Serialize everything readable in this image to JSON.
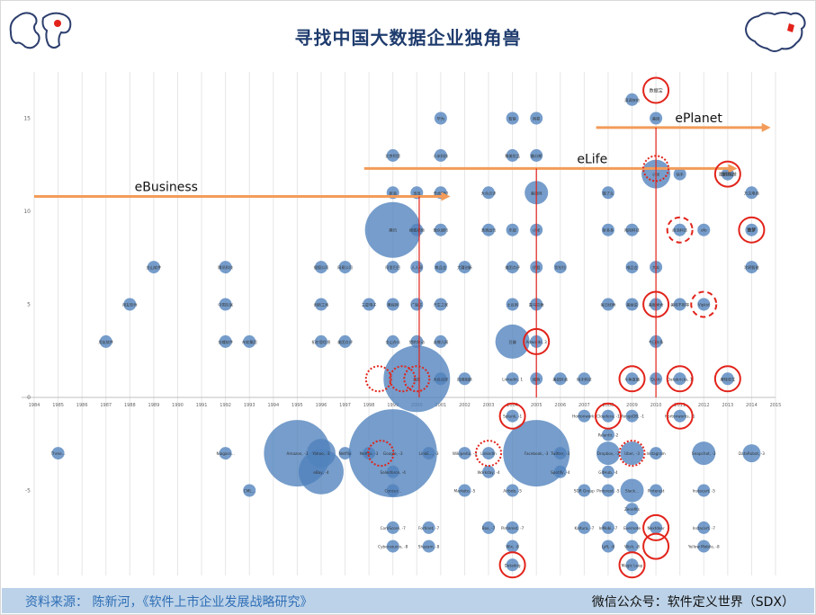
{
  "title": "寻找中国大数据企业独角兽",
  "footer": {
    "source": "资料来源： 陈新河，《软件上市企业发展战略研究》",
    "wechat": "微信公众号：软件定义世界（SDX）"
  },
  "icons": {
    "left_map": "world-map-icon",
    "right_map": "china-map-icon"
  },
  "colors": {
    "bubble": "#4f81bd",
    "arrow": "#f39c5a",
    "circle": "#e2231a",
    "vline": "#e2231a",
    "title": "#1f3c6e"
  },
  "chart_data": {
    "type": "scatter",
    "title": "",
    "xlabel": "",
    "ylabel": "",
    "xlim": [
      1984,
      2015
    ],
    "ylim": [
      -9,
      17
    ],
    "x_ticks": [
      "1984",
      "1985",
      "1986",
      "1987",
      "1988",
      "1989",
      "1990",
      "1991",
      "1992",
      "1993",
      "1994",
      "1995",
      "1996",
      "1997",
      "1998",
      "1999",
      "2000",
      "2001",
      "2002",
      "2003",
      "2004",
      "2005",
      "2006",
      "2007",
      "2008",
      "2009",
      "2010",
      "2011",
      "2012",
      "2013",
      "2014",
      "2015"
    ],
    "y_ticks": [
      -5,
      0,
      5,
      10,
      15
    ],
    "grid": "vertical",
    "eras": [
      {
        "label": "eBusiness",
        "from": 1984,
        "to": 2001.4,
        "y": 10.8,
        "start_line": 2000.1
      },
      {
        "label": "eLife",
        "from": 1997.8,
        "to": 2013.4,
        "y": 12.3,
        "start_line": 2005
      },
      {
        "label": "ePlanet",
        "from": 2007.5,
        "to": 2014.8,
        "y": 14.5,
        "start_line": 2010
      }
    ],
    "points": [
      {
        "x": 1985,
        "y": -3,
        "size": 1,
        "label": "Three..."
      },
      {
        "x": 1987,
        "y": 3,
        "size": 1,
        "label": "用友软件"
      },
      {
        "x": 1988,
        "y": 5,
        "size": 1,
        "label": "用友软件"
      },
      {
        "x": 1989,
        "y": 7,
        "size": 1,
        "label": "金山软件"
      },
      {
        "x": 1992,
        "y": -3,
        "size": 1,
        "label": "Niagara..."
      },
      {
        "x": 1992,
        "y": 3,
        "size": 1,
        "label": "金蝶软件"
      },
      {
        "x": 1992,
        "y": 5,
        "size": 1,
        "label": "中国互联"
      },
      {
        "x": 1992,
        "y": 7,
        "size": 1,
        "label": "腾讯科技"
      },
      {
        "x": 1993,
        "y": 3,
        "size": 1,
        "label": "东软集团"
      },
      {
        "x": 1993,
        "y": -5,
        "size": 1,
        "label": "CML..."
      },
      {
        "x": 1995,
        "y": -3,
        "size": 6,
        "label": "Amazon, -3"
      },
      {
        "x": 1996,
        "y": -4,
        "size": 4,
        "label": "eBay, -4"
      },
      {
        "x": 1996,
        "y": -3,
        "size": 2.5,
        "label": "Yahoo, -3"
      },
      {
        "x": 1997,
        "y": -3,
        "size": 1,
        "label": "Netflix"
      },
      {
        "x": 1996,
        "y": 7,
        "size": 1,
        "label": "搜狐公司"
      },
      {
        "x": 1997,
        "y": 7,
        "size": 1,
        "label": "网易公司"
      },
      {
        "x": 1996,
        "y": 5,
        "size": 1,
        "label": "创新工场"
      },
      {
        "x": 1996,
        "y": 3,
        "size": 1,
        "label": "拓尔思信息"
      },
      {
        "x": 1997,
        "y": 3,
        "size": 1,
        "label": "美团点评"
      },
      {
        "x": 1998,
        "y": -3,
        "size": 1,
        "label": "Netflix, -3"
      },
      {
        "x": 1998,
        "y": 5,
        "size": 1,
        "label": "三星电子"
      },
      {
        "x": 1999,
        "y": 9,
        "size": 5,
        "label": "腾讯"
      },
      {
        "x": 1999,
        "y": 11,
        "size": 1,
        "label": "新浪"
      },
      {
        "x": 1999,
        "y": 3,
        "size": 1,
        "label": "金山办公"
      },
      {
        "x": 1999,
        "y": 5,
        "size": 1,
        "label": "携程网"
      },
      {
        "x": 1999,
        "y": 7,
        "size": 1,
        "label": "阿里巴巴"
      },
      {
        "x": 1999,
        "y": -3,
        "size": 8,
        "label": "Google, -3"
      },
      {
        "x": 1999,
        "y": -4,
        "size": 1,
        "label": "Salesforce, -4"
      },
      {
        "x": 1999,
        "y": -7,
        "size": 1,
        "label": "ComScore, -7"
      },
      {
        "x": 1999,
        "y": -8,
        "size": 1,
        "label": "Cybersource, -8"
      },
      {
        "x": 1999,
        "y": -5,
        "size": 1,
        "label": "Concur..."
      },
      {
        "x": 1999,
        "y": 13,
        "size": 1,
        "label": "北京阿里"
      },
      {
        "x": 2000,
        "y": 1,
        "size": 6,
        "label": "百度"
      },
      {
        "x": 2000,
        "y": 11,
        "size": 1,
        "label": "当当"
      },
      {
        "x": 2000,
        "y": 9,
        "size": 1,
        "label": "搜狐视频"
      },
      {
        "x": 2000,
        "y": 7,
        "size": 1,
        "label": "人人网"
      },
      {
        "x": 2000,
        "y": 5,
        "size": 1,
        "label": "广联达"
      },
      {
        "x": 2000,
        "y": 3,
        "size": 1,
        "label": "猎豹移动"
      },
      {
        "x": 2000.5,
        "y": -3,
        "size": 1,
        "label": "LinkE..., -3"
      },
      {
        "x": 2000.5,
        "y": -7,
        "size": 1,
        "label": "Fortinet, -7"
      },
      {
        "x": 2000.5,
        "y": -8,
        "size": 1,
        "label": "Shazam, -8"
      },
      {
        "x": 2001,
        "y": 13,
        "size": 1,
        "label": "小米科技"
      },
      {
        "x": 2001,
        "y": 15,
        "size": 1,
        "label": "华为"
      },
      {
        "x": 2001,
        "y": 11,
        "size": 1,
        "label": "奇虎360"
      },
      {
        "x": 2001,
        "y": 9,
        "size": 1,
        "label": "微众银行"
      },
      {
        "x": 2001,
        "y": 7,
        "size": 1,
        "label": "唯品会"
      },
      {
        "x": 2001,
        "y": 5,
        "size": 1,
        "label": "汽车之家"
      },
      {
        "x": 2001,
        "y": 3,
        "size": 1,
        "label": "去哪儿网"
      },
      {
        "x": 2001,
        "y": 1,
        "size": 1,
        "label": "大众点评"
      },
      {
        "x": 2002,
        "y": -5,
        "size": 1,
        "label": "Marketo, -5"
      },
      {
        "x": 2002,
        "y": -3,
        "size": 1,
        "label": "Wikipedia, -3"
      },
      {
        "x": 2002,
        "y": 1,
        "size": 1,
        "label": "四维图新"
      },
      {
        "x": 2002,
        "y": 7,
        "size": 1,
        "label": "大疆创新"
      },
      {
        "x": 2003,
        "y": -3,
        "size": 1,
        "label": "LinkedIn"
      },
      {
        "x": 2003,
        "y": -4,
        "size": 1,
        "label": "Workday, -4"
      },
      {
        "x": 2003,
        "y": -7,
        "size": 1,
        "label": "Box, -7"
      },
      {
        "x": 2003,
        "y": 9,
        "size": 1,
        "label": "滴滴出行"
      },
      {
        "x": 2003,
        "y": 11,
        "size": 1,
        "label": "大众点评"
      },
      {
        "x": 2004,
        "y": 15,
        "size": 1,
        "label": "智联"
      },
      {
        "x": 2004,
        "y": 13,
        "size": 1,
        "label": "聚美优品"
      },
      {
        "x": 2004,
        "y": 9,
        "size": 1,
        "label": "乐视"
      },
      {
        "x": 2004,
        "y": 7,
        "size": 1,
        "label": "美团点评"
      },
      {
        "x": 2004,
        "y": 5,
        "size": 1,
        "label": "土豆网"
      },
      {
        "x": 2004,
        "y": 3,
        "size": 3,
        "label": "豆瓣"
      },
      {
        "x": 2004,
        "y": 1,
        "size": 1,
        "label": "Linkedin, 1"
      },
      {
        "x": 2004,
        "y": -1,
        "size": 1,
        "label": "Splunk, -1"
      },
      {
        "x": 2004,
        "y": -5,
        "size": 1,
        "label": "Airbnb, -5"
      },
      {
        "x": 2004,
        "y": -7,
        "size": 1,
        "label": "Pinterest, -7"
      },
      {
        "x": 2004,
        "y": -8,
        "size": 1,
        "label": "Wix, -8"
      },
      {
        "x": 2004,
        "y": -9,
        "size": 1,
        "label": "Datadog"
      },
      {
        "x": 2005,
        "y": -3,
        "size": 6,
        "label": "Facebook, -3"
      },
      {
        "x": 2005,
        "y": 11,
        "size": 2,
        "label": "美团网"
      },
      {
        "x": 2005,
        "y": 3,
        "size": 1,
        "label": "Adwords, 3"
      },
      {
        "x": 2005,
        "y": 1,
        "size": 1,
        "label": "搜狗"
      },
      {
        "x": 2005,
        "y": 5,
        "size": 1,
        "label": "喜马拉雅"
      },
      {
        "x": 2005,
        "y": 7,
        "size": 1,
        "label": "优酷"
      },
      {
        "x": 2005,
        "y": 9,
        "size": 1,
        "label": "小米"
      },
      {
        "x": 2005,
        "y": 13,
        "size": 1,
        "label": "趣分期"
      },
      {
        "x": 2005,
        "y": 15,
        "size": 1,
        "label": "网易"
      },
      {
        "x": 2006,
        "y": -3,
        "size": 1,
        "label": "Twitter, -3"
      },
      {
        "x": 2006,
        "y": -4,
        "size": 1,
        "label": "Spotify, -4"
      },
      {
        "x": 2006,
        "y": 1,
        "size": 1,
        "label": "美团外卖"
      },
      {
        "x": 2006,
        "y": 7,
        "size": 1,
        "label": "货拉拉"
      },
      {
        "x": 2007,
        "y": -1,
        "size": 1,
        "label": "Hortonworks"
      },
      {
        "x": 2007,
        "y": -5,
        "size": 1,
        "label": "SGR Group"
      },
      {
        "x": 2007,
        "y": -7,
        "size": 1,
        "label": "Kaltura, -7"
      },
      {
        "x": 2007,
        "y": 1,
        "size": 1,
        "label": "快手科技"
      },
      {
        "x": 2008,
        "y": -1,
        "size": 1,
        "label": "Cloudera, -1"
      },
      {
        "x": 2008,
        "y": -2,
        "size": 1,
        "label": "Palantir, -2"
      },
      {
        "x": 2008,
        "y": -3,
        "size": 2,
        "label": "Dropbox, -3"
      },
      {
        "x": 2008,
        "y": -4,
        "size": 1,
        "label": "GitHub, -4"
      },
      {
        "x": 2008,
        "y": -5,
        "size": 1,
        "label": "Pinterest, -5"
      },
      {
        "x": 2008,
        "y": -7,
        "size": 1,
        "label": "InMobi, -7"
      },
      {
        "x": 2008,
        "y": -8,
        "size": 1,
        "label": "Lyft, -8"
      },
      {
        "x": 2008,
        "y": 11,
        "size": 1,
        "label": "饿了么"
      },
      {
        "x": 2008,
        "y": 9,
        "size": 1,
        "label": "拼多多"
      },
      {
        "x": 2008,
        "y": 5,
        "size": 1,
        "label": "每日优鲜"
      },
      {
        "x": 2009,
        "y": -1,
        "size": 1,
        "label": "MongoDB, -1"
      },
      {
        "x": 2009,
        "y": -3,
        "size": 2,
        "label": "Uber, -3"
      },
      {
        "x": 2009,
        "y": -5,
        "size": 2,
        "label": "Slack..."
      },
      {
        "x": 2009,
        "y": -6,
        "size": 1,
        "label": "Zenefits"
      },
      {
        "x": 2009,
        "y": -7,
        "size": 1,
        "label": "Evernote"
      },
      {
        "x": 2009,
        "y": -8,
        "size": 1,
        "label": "Wish, -8"
      },
      {
        "x": 2009,
        "y": -9,
        "size": 1,
        "label": "Magic Leap"
      },
      {
        "x": 2009,
        "y": 16,
        "size": 1,
        "label": "滴滴快的"
      },
      {
        "x": 2009,
        "y": 9,
        "size": 1,
        "label": "陌陌科技"
      },
      {
        "x": 2009,
        "y": 7,
        "size": 1,
        "label": "唯品会"
      },
      {
        "x": 2009,
        "y": 5,
        "size": 1,
        "label": "美丽说"
      },
      {
        "x": 2009,
        "y": 1,
        "size": 1,
        "label": "斗鱼直播"
      },
      {
        "x": 2010,
        "y": 12,
        "size": 2.5,
        "label": "小米"
      },
      {
        "x": 2010,
        "y": 15,
        "size": 1,
        "label": "美团"
      },
      {
        "x": 2010,
        "y": 7,
        "size": 1,
        "label": "大众"
      },
      {
        "x": 2010,
        "y": 5,
        "size": 1,
        "label": "美图秀秀"
      },
      {
        "x": 2010,
        "y": 3,
        "size": 1,
        "label": "今日头条"
      },
      {
        "x": 2010,
        "y": 1,
        "size": 1,
        "label": "Quikr"
      },
      {
        "x": 2010,
        "y": -3,
        "size": 1,
        "label": "Instagram"
      },
      {
        "x": 2010,
        "y": -5,
        "size": 1,
        "label": "Pinterest"
      },
      {
        "x": 2010,
        "y": -7,
        "size": 1,
        "label": "Nextdoor"
      },
      {
        "x": 2011,
        "y": -1,
        "size": 1,
        "label": "Hortonworks, -1"
      },
      {
        "x": 2011,
        "y": 9,
        "size": 1,
        "label": "商汤科技"
      },
      {
        "x": 2011,
        "y": 5,
        "size": 1,
        "label": "美味不用等"
      },
      {
        "x": 2011,
        "y": 1,
        "size": 1,
        "label": "Databricks, 1"
      },
      {
        "x": 2011,
        "y": 12,
        "size": 1,
        "label": "快手"
      },
      {
        "x": 2012,
        "y": -3,
        "size": 2,
        "label": "Snapchat, -3"
      },
      {
        "x": 2012,
        "y": -5,
        "size": 1,
        "label": "Instacart, -5"
      },
      {
        "x": 2012,
        "y": -7,
        "size": 1,
        "label": "Instacart, -7"
      },
      {
        "x": 2012,
        "y": -8,
        "size": 1,
        "label": "Yellow Mobile, -8"
      },
      {
        "x": 2012,
        "y": 5,
        "size": 1,
        "label": "Vipkid"
      },
      {
        "x": 2012,
        "y": 9,
        "size": 1,
        "label": "ofo"
      },
      {
        "x": 2013,
        "y": 12,
        "size": 1,
        "label": "蘑菇街"
      },
      {
        "x": 2013,
        "y": 1,
        "size": 1,
        "label": "摩拜单车"
      },
      {
        "x": 2014,
        "y": -3,
        "size": 1.5,
        "label": "DataRobot, -3"
      },
      {
        "x": 2014,
        "y": 7,
        "size": 1,
        "label": "涂鸦智能"
      },
      {
        "x": 2014,
        "y": 9,
        "size": 1,
        "label": "数梦"
      },
      {
        "x": 2014,
        "y": 11,
        "size": 1,
        "label": "万达电商"
      }
    ],
    "highlights": [
      {
        "x": 2010,
        "y": 16.5,
        "label": "数据宝",
        "style": "solid"
      },
      {
        "x": 2013,
        "y": 12,
        "label": "星环科技",
        "style": "solid"
      },
      {
        "x": 2014,
        "y": 9,
        "label": "数梦",
        "style": "solid"
      },
      {
        "x": 2010,
        "y": 5,
        "label": "",
        "style": "solid"
      },
      {
        "x": 2009,
        "y": 1,
        "label": "",
        "style": "solid"
      },
      {
        "x": 2011,
        "y": 1,
        "label": "",
        "style": "solid"
      },
      {
        "x": 2013,
        "y": 1,
        "label": "",
        "style": "solid"
      },
      {
        "x": 2005,
        "y": 3,
        "label": "",
        "style": "solid"
      },
      {
        "x": 2004,
        "y": -1,
        "label": "",
        "style": "solid"
      },
      {
        "x": 2008,
        "y": -1,
        "label": "",
        "style": "solid"
      },
      {
        "x": 2011,
        "y": -1,
        "label": "",
        "style": "solid"
      },
      {
        "x": 2010,
        "y": -7,
        "label": "",
        "style": "solid"
      },
      {
        "x": 2010,
        "y": -8,
        "label": "",
        "style": "solid"
      },
      {
        "x": 2009,
        "y": -9,
        "label": "",
        "style": "solid"
      },
      {
        "x": 2004,
        "y": -9,
        "label": "",
        "style": "solid"
      },
      {
        "x": 2010,
        "y": 12.3,
        "label": "",
        "style": "dotted"
      },
      {
        "x": 2011,
        "y": 9,
        "label": "",
        "style": "dashed"
      },
      {
        "x": 2012,
        "y": 5,
        "label": "",
        "style": "dashed"
      },
      {
        "x": 1998.4,
        "y": 1,
        "label": "",
        "style": "dotted"
      },
      {
        "x": 1999.4,
        "y": 1,
        "label": "",
        "style": "dotted"
      },
      {
        "x": 2000,
        "y": 1,
        "label": "",
        "style": "dotted"
      },
      {
        "x": 1998.5,
        "y": -3,
        "label": "",
        "style": "dotted"
      },
      {
        "x": 2003,
        "y": -3,
        "label": "",
        "style": "dotted"
      },
      {
        "x": 2009,
        "y": -3,
        "label": "",
        "style": "dotted"
      }
    ]
  }
}
